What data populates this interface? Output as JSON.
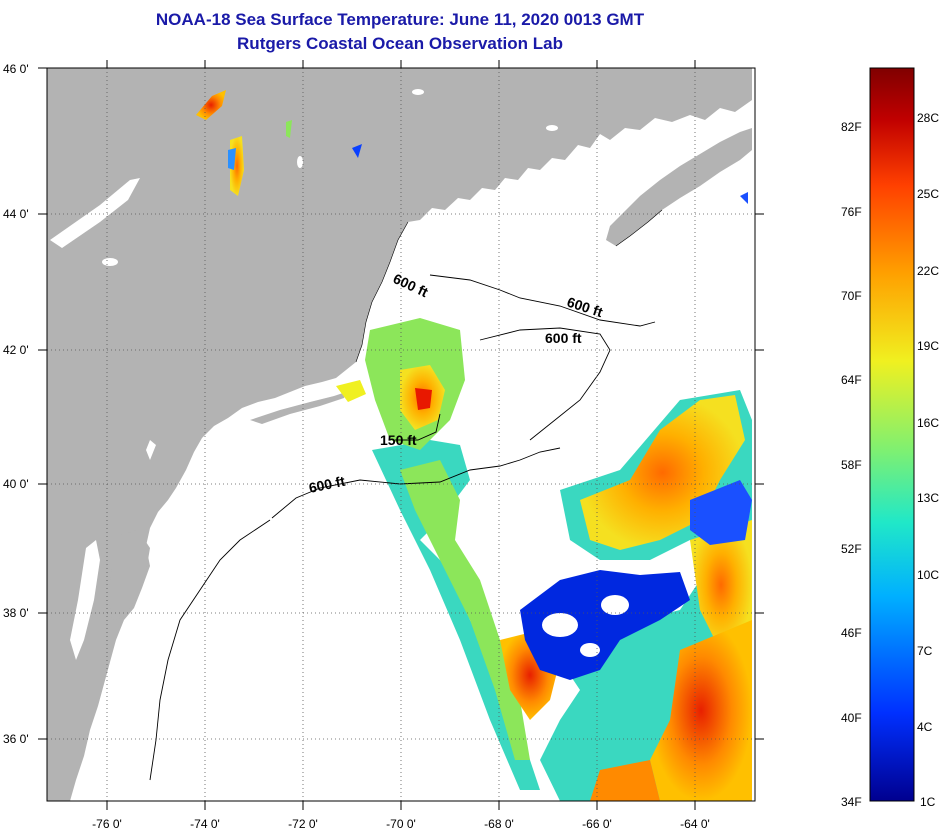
{
  "header": {
    "title": "NOAA-18 Sea Surface Temperature:  June 11, 2020 0013 GMT",
    "subtitle": "Rutgers Coastal Ocean Observation Lab"
  },
  "map": {
    "lat_range": [
      35,
      46
    ],
    "lon_range": [
      -77,
      -63
    ],
    "lat_ticks": [
      "36 0'",
      "38 0'",
      "40 0'",
      "42 0'",
      "44 0'",
      "46 0'"
    ],
    "lon_ticks": [
      "-76 0'",
      "-74 0'",
      "-72 0'",
      "-70 0'",
      "-68 0'",
      "-66 0'",
      "-64 0'"
    ],
    "land_color": "#b3b3b3",
    "depth_labels": [
      "600 ft",
      "600 ft",
      "600 ft",
      "150 ft",
      "600 ft"
    ]
  },
  "colorbar": {
    "f_labels": [
      "82F",
      "76F",
      "70F",
      "64F",
      "58F",
      "52F",
      "46F",
      "40F",
      "34F"
    ],
    "c_labels": [
      "28C",
      "25C",
      "22C",
      "19C",
      "16C",
      "13C",
      "10C",
      "7C",
      "4C",
      "1C"
    ],
    "colors": [
      "#00008f",
      "#0030ff",
      "#00b0ff",
      "#20e8c8",
      "#80f070",
      "#f0f020",
      "#ffa000",
      "#ff4000",
      "#c00000",
      "#800000"
    ]
  }
}
